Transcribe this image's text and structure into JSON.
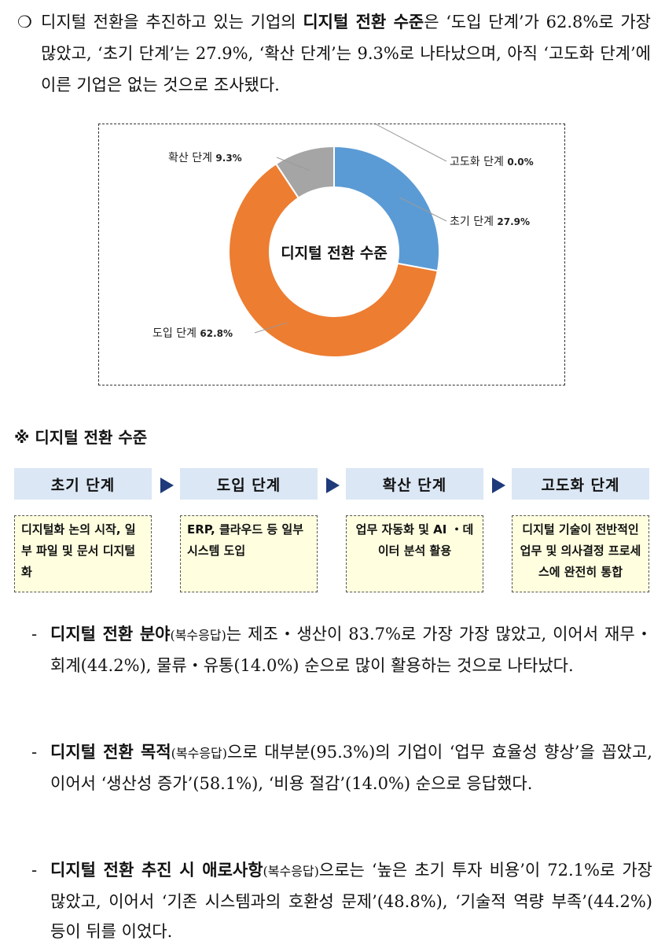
{
  "intro": {
    "bullet": "❍",
    "pre": "디지털 전환을 추진하고 있는 기업의 ",
    "keyword": "디지털 전환 수준",
    "post": "은 ‘도입 단계’가 62.8%로 가장 많았고, ‘초기 단계’는 27.9%, ‘확산 단계’는 9.3%로 나타났으며, 아직 ‘고도화 단계’에 이른 기업은 없는 것으로 조사됐다."
  },
  "chart_data": {
    "type": "pie",
    "title": "디지털 전환 수준",
    "donut": true,
    "slices": [
      {
        "label": "고도화 단계",
        "value": 0.0,
        "display": "0.0%",
        "color": "#4472c4"
      },
      {
        "label": "초기 단계",
        "value": 27.9,
        "display": "27.9%",
        "color": "#5b9bd5"
      },
      {
        "label": "도입 단계",
        "value": 62.8,
        "display": "62.8%",
        "color": "#ed7d31"
      },
      {
        "label": "확산 단계",
        "value": 9.3,
        "display": "9.3%",
        "color": "#a5a5a5"
      }
    ]
  },
  "stages": {
    "title": "※ 디지털 전환 수준",
    "items": [
      {
        "name": "초기 단계",
        "desc": "디지털화 논의 시작, 일부 파일 및 문서 디지털화"
      },
      {
        "name": "도입 단계",
        "desc": "ERP, 클라우드 등 일부 시스템 도입"
      },
      {
        "name": "확산 단계",
        "desc": "업무 자동화 및 AI ・데이터 분석 활용"
      },
      {
        "name": "고도화 단계",
        "desc": "디지털 기술이 전반적인 업무 및 의사결정 프로세스에 완전히 통합"
      }
    ]
  },
  "paragraphs": [
    {
      "dash": "-",
      "keyword": "디지털 전환 분야",
      "note": "(복수응답)",
      "text": "는 제조・생산이 83.7%로 가장 가장 많았고, 이어서 재무・회계(44.2%), 물류・유통(14.0%) 순으로 많이 활용하는 것으로 나타났다."
    },
    {
      "dash": "-",
      "keyword": "디지털 전환 목적",
      "note": "(복수응답)",
      "text": "으로 대부분(95.3%)의 기업이 ‘업무 효율성 향상’을 꼽았고, 이어서 ‘생산성 증가’(58.1%), ‘비용 절감’(14.0%) 순으로 응답했다."
    },
    {
      "dash": "-",
      "keyword": "디지털 전환 추진 시 애로사항",
      "note": "(복수응답)",
      "text": "으로는 ‘높은 초기 투자 비용’이 72.1%로 가장 많았고, 이어서 ‘기존 시스템과의 호환성 문제’(48.8%), ‘기술적 역량 부족’(44.2%) 등이 뒤를 이었다."
    }
  ]
}
